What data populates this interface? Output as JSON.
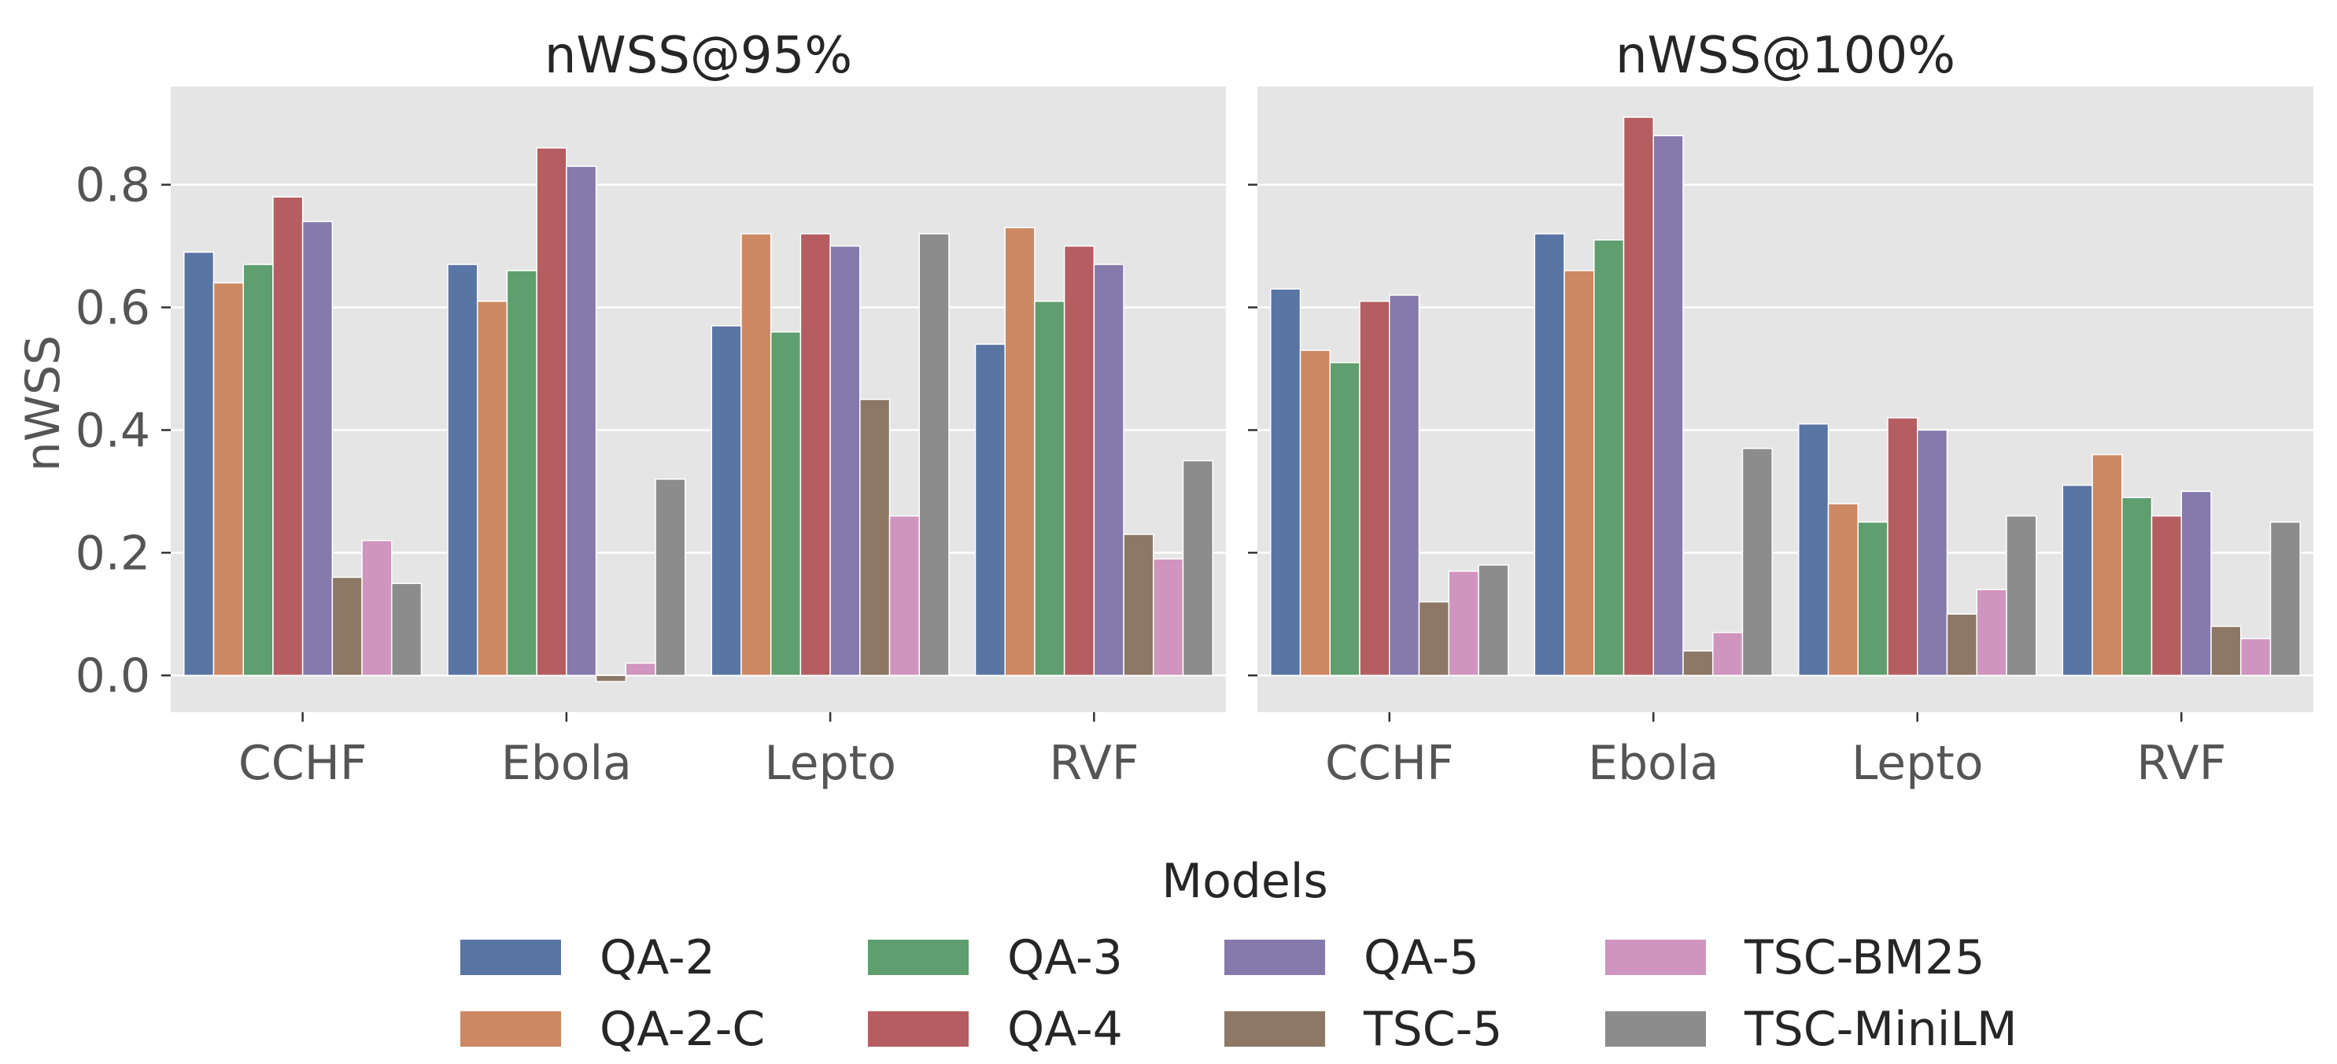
{
  "colors": {
    "panel_bg": "#e5e5e5",
    "grid": "#ffffff",
    "tick_text": "#555555",
    "title_text": "#262626",
    "QA-2": "#5975a4",
    "QA-2-C": "#cc8963",
    "QA-3": "#5f9e6e",
    "QA-4": "#b55d60",
    "QA-5": "#857aab",
    "TSC-5": "#8d7866",
    "TSC-BM25": "#d095bf",
    "TSC-MiniLM": "#8c8c8c"
  },
  "legend": {
    "title": "Models",
    "items": [
      {
        "name": "QA-2"
      },
      {
        "name": "QA-3"
      },
      {
        "name": "QA-5"
      },
      {
        "name": "TSC-BM25"
      },
      {
        "name": "QA-2-C"
      },
      {
        "name": "QA-4"
      },
      {
        "name": "TSC-5"
      },
      {
        "name": "TSC-MiniLM"
      }
    ]
  },
  "chart_data": [
    {
      "type": "bar",
      "title": "nWSS@95%",
      "xlabel": "",
      "ylabel": "nWSS",
      "ylim": [
        -0.06,
        0.96
      ],
      "yticks": [
        "0.0",
        "0.2",
        "0.4",
        "0.6",
        "0.8"
      ],
      "categories": [
        "CCHF",
        "Ebola",
        "Lepto",
        "RVF"
      ],
      "series": [
        {
          "name": "QA-2",
          "values": [
            0.69,
            0.67,
            0.57,
            0.54
          ]
        },
        {
          "name": "QA-2-C",
          "values": [
            0.64,
            0.61,
            0.72,
            0.73
          ]
        },
        {
          "name": "QA-3",
          "values": [
            0.67,
            0.66,
            0.56,
            0.61
          ]
        },
        {
          "name": "QA-4",
          "values": [
            0.78,
            0.86,
            0.72,
            0.7
          ]
        },
        {
          "name": "QA-5",
          "values": [
            0.74,
            0.83,
            0.7,
            0.67
          ]
        },
        {
          "name": "TSC-5",
          "values": [
            0.16,
            -0.01,
            0.45,
            0.23
          ]
        },
        {
          "name": "TSC-BM25",
          "values": [
            0.22,
            0.02,
            0.26,
            0.19
          ]
        },
        {
          "name": "TSC-MiniLM",
          "values": [
            0.15,
            0.32,
            0.72,
            0.35
          ]
        }
      ]
    },
    {
      "type": "bar",
      "title": "nWSS@100%",
      "xlabel": "",
      "ylabel": "",
      "ylim": [
        -0.06,
        0.96
      ],
      "categories": [
        "CCHF",
        "Ebola",
        "Lepto",
        "RVF"
      ],
      "series": [
        {
          "name": "QA-2",
          "values": [
            0.63,
            0.72,
            0.41,
            0.31
          ]
        },
        {
          "name": "QA-2-C",
          "values": [
            0.53,
            0.66,
            0.28,
            0.36
          ]
        },
        {
          "name": "QA-3",
          "values": [
            0.51,
            0.71,
            0.25,
            0.29
          ]
        },
        {
          "name": "QA-4",
          "values": [
            0.61,
            0.91,
            0.42,
            0.26
          ]
        },
        {
          "name": "QA-5",
          "values": [
            0.62,
            0.88,
            0.4,
            0.3
          ]
        },
        {
          "name": "TSC-5",
          "values": [
            0.12,
            0.04,
            0.1,
            0.08
          ]
        },
        {
          "name": "TSC-BM25",
          "values": [
            0.17,
            0.07,
            0.14,
            0.06
          ]
        },
        {
          "name": "TSC-MiniLM",
          "values": [
            0.18,
            0.37,
            0.26,
            0.25
          ]
        }
      ]
    }
  ]
}
